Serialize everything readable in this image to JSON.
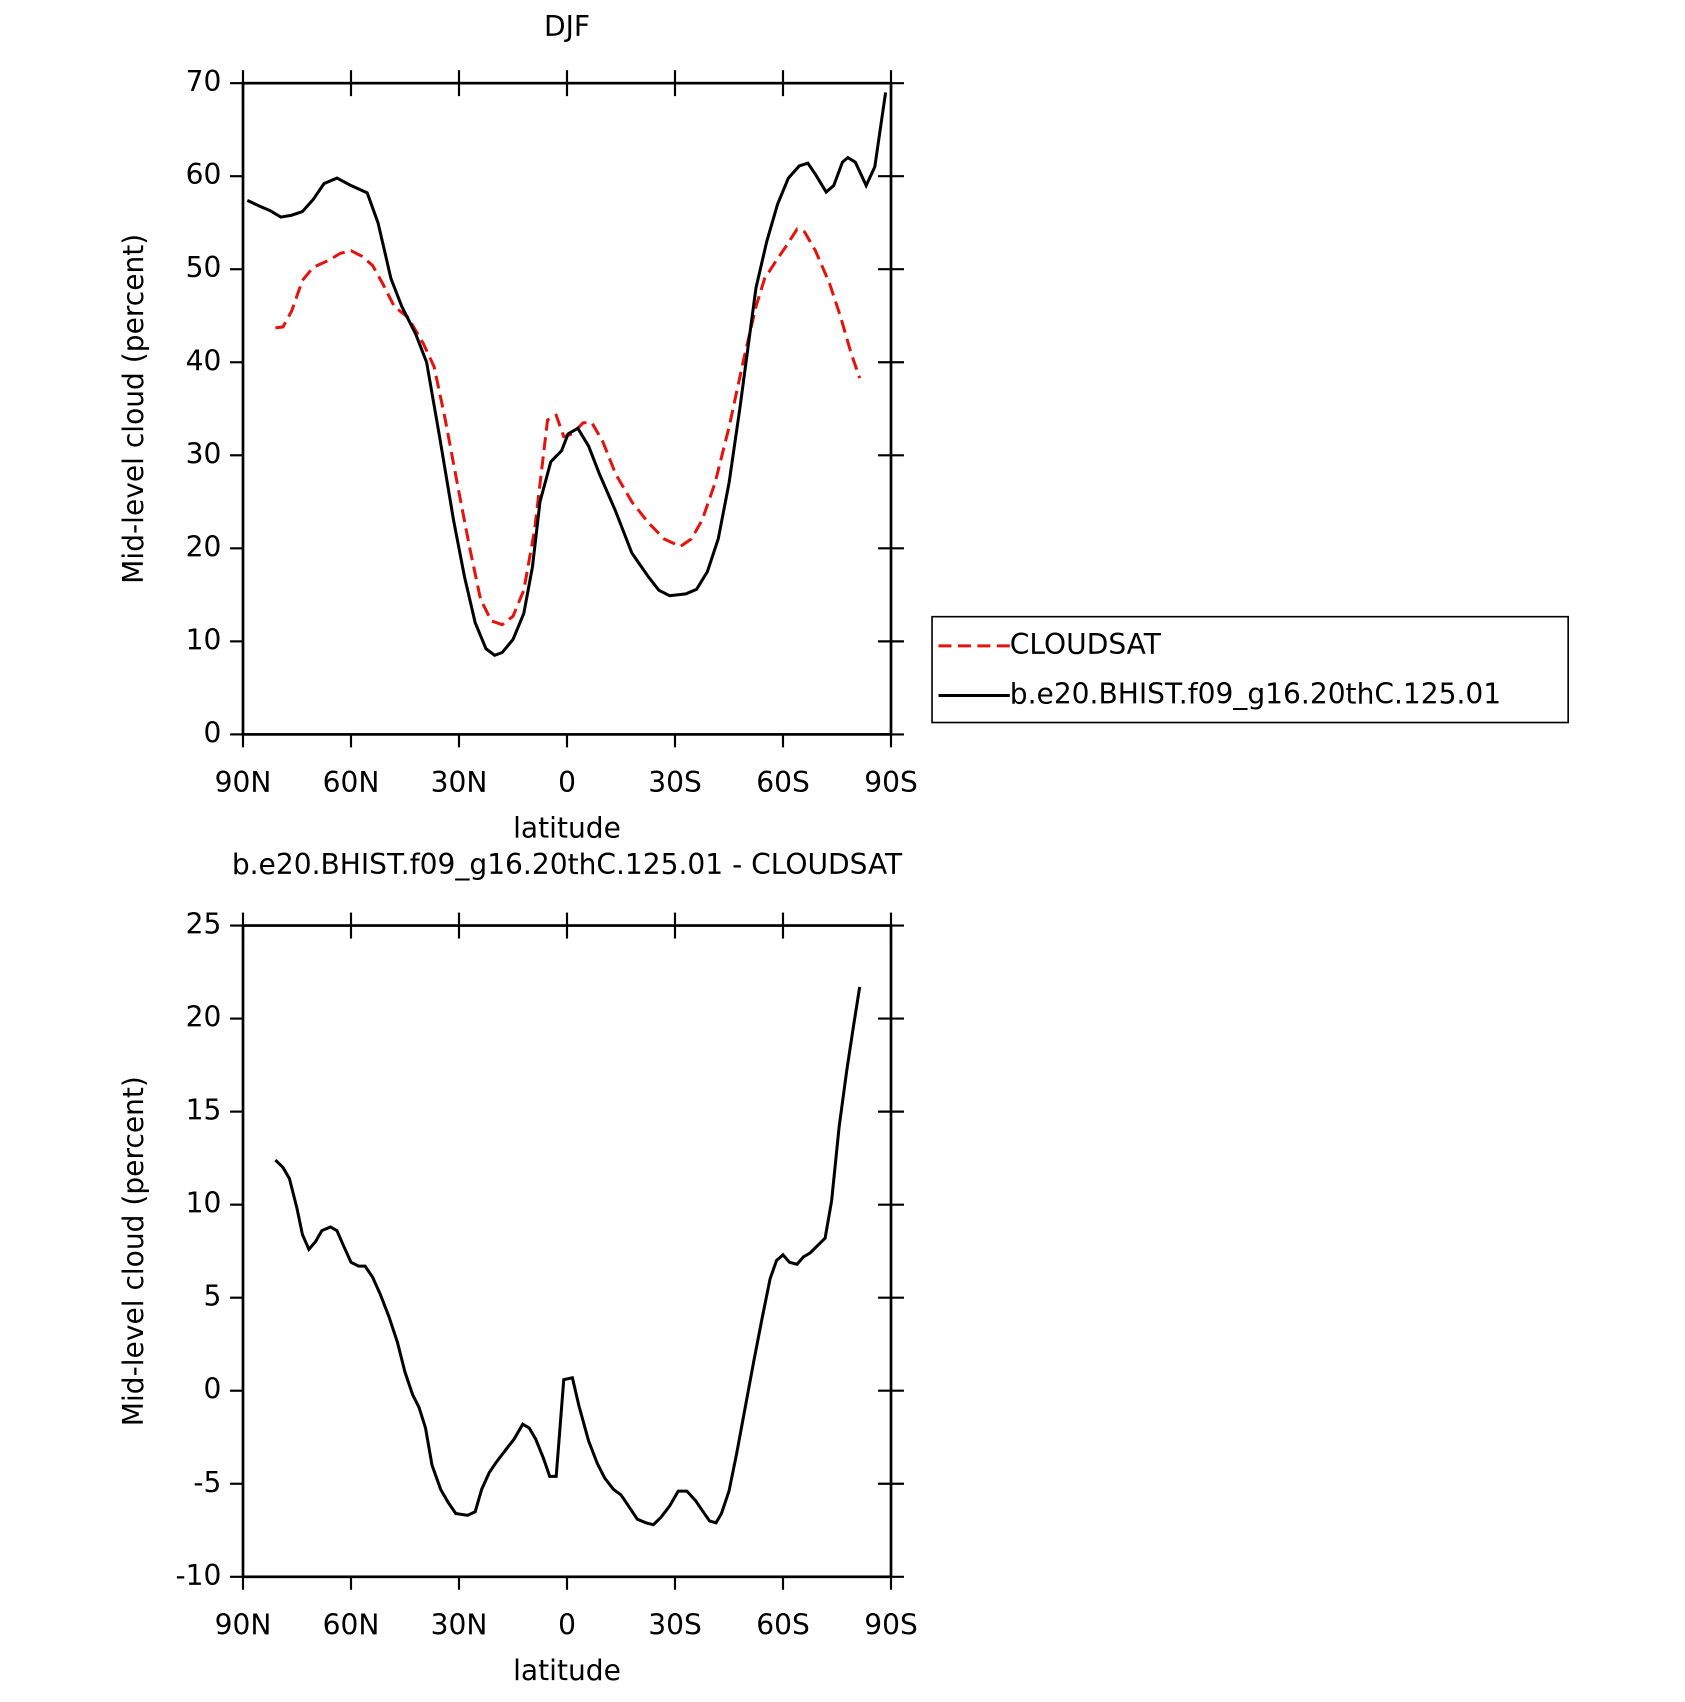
{
  "chart_data": [
    {
      "type": "line",
      "title": "DJF",
      "x_label": "latitude",
      "y_label": "Mid-level cloud (percent)",
      "xlim": [
        90,
        -90
      ],
      "xticks": [
        {
          "value": 90,
          "label": "90N"
        },
        {
          "value": 60,
          "label": "60N"
        },
        {
          "value": 30,
          "label": "30N"
        },
        0,
        {
          "value": -30,
          "label": "30S"
        },
        {
          "value": -60,
          "label": "60S"
        },
        {
          "value": -90,
          "label": "90S"
        }
      ],
      "ylim": [
        0,
        70
      ],
      "yticks": [
        0,
        10,
        20,
        30,
        40,
        50,
        60,
        70
      ],
      "legend": "right",
      "series": [
        {
          "name": "CLOUDSAT",
          "color": "#e8120c",
          "dashed": true,
          "x": [
            81,
            78.9,
            76.5,
            73.5,
            70.5,
            66,
            63,
            60,
            57,
            54,
            51,
            48,
            44.1,
            39.9,
            36.9,
            33.9,
            30,
            27,
            24,
            21,
            18,
            15,
            12,
            9,
            5.4,
            3,
            0.9,
            -1.5,
            -4.5,
            -6.9,
            -9.9,
            -13.5,
            -18,
            -22.5,
            -27,
            -31.5,
            -34.5,
            -37.5,
            -41.1,
            -45,
            -48.9,
            -52.5,
            -54.9,
            -57.9,
            -60.9,
            -63.9,
            -66,
            -69,
            -72.9,
            -75.9,
            -78.9,
            -81.3
          ],
          "values": [
            43.7,
            43.8,
            45.5,
            48.8,
            50.2,
            51,
            51.7,
            52,
            51.4,
            50.4,
            48.3,
            46,
            44.8,
            42,
            39.5,
            34,
            26,
            20,
            14.5,
            12.2,
            11.8,
            12.7,
            15.5,
            22,
            33.8,
            34.3,
            32,
            32.3,
            33.5,
            33.5,
            31.5,
            28,
            25,
            22.8,
            21,
            20.2,
            21,
            23,
            27,
            33,
            40,
            46,
            49,
            50.8,
            52.5,
            54.3,
            54,
            52,
            48.5,
            45,
            41,
            38.3
          ]
        },
        {
          "name": "b.e20.BHIST.f09_g16.20thC.125.01",
          "color": "#000000",
          "dashed": false,
          "x": [
            88.8,
            85.5,
            82.5,
            79.5,
            76.5,
            73.5,
            70.5,
            67.5,
            63.9,
            60,
            55.5,
            52.5,
            48.9,
            45.9,
            42,
            39,
            35.4,
            31.5,
            28.5,
            25.5,
            22.5,
            20.1,
            18,
            15,
            12,
            9.6,
            7.5,
            4.5,
            1.5,
            -0.3,
            -3,
            -6,
            -9,
            -13.5,
            -18,
            -22.5,
            -25.5,
            -28.5,
            -33,
            -36,
            -39,
            -42,
            -45,
            -48,
            -52.5,
            -55.5,
            -58.5,
            -61.5,
            -64.5,
            -66.9,
            -69,
            -72,
            -74.1,
            -76.5,
            -78,
            -80.1,
            -83.1,
            -85.5,
            -88.5
          ],
          "values": [
            57.4,
            56.8,
            56.3,
            55.6,
            55.8,
            56.2,
            57.5,
            59.2,
            59.8,
            59,
            58.2,
            55,
            49,
            46,
            43,
            40,
            32,
            23,
            17,
            12,
            9.2,
            8.5,
            8.8,
            10.2,
            13,
            18,
            25,
            29.3,
            30.5,
            32.3,
            32.9,
            31,
            28,
            24,
            19.5,
            17,
            15.5,
            14.9,
            15.1,
            15.6,
            17.5,
            21,
            27,
            35,
            48,
            53,
            57,
            59.8,
            61.1,
            61.4,
            60.2,
            58.3,
            59,
            61.5,
            62,
            61.5,
            59,
            61,
            69
          ]
        }
      ]
    },
    {
      "type": "line",
      "title": "b.e20.BHIST.f09_g16.20thC.125.01 - CLOUDSAT",
      "x_label": "latitude",
      "y_label": "Mid-level cloud (percent)",
      "xlim": [
        90,
        -90
      ],
      "xticks": [
        {
          "value": 90,
          "label": "90N"
        },
        {
          "value": 60,
          "label": "60N"
        },
        {
          "value": 30,
          "label": "30N"
        },
        0,
        {
          "value": -30,
          "label": "30S"
        },
        {
          "value": -60,
          "label": "60S"
        },
        {
          "value": -90,
          "label": "90S"
        }
      ],
      "ylim": [
        -10,
        25
      ],
      "yticks": [
        -10,
        -5,
        0,
        5,
        10,
        15,
        20,
        25
      ],
      "series": [
        {
          "color": "#000000",
          "dashed": false,
          "x": [
            81,
            78.9,
            77.1,
            75,
            73.5,
            71.7,
            69.9,
            68.1,
            65.7,
            63.9,
            62.1,
            60,
            57.9,
            56.1,
            54,
            51.9,
            49.5,
            47.1,
            45,
            42.9,
            41.1,
            39.3,
            37.5,
            35.1,
            33,
            30.9,
            27.6,
            25.5,
            23.7,
            21.6,
            19.5,
            17.1,
            14.7,
            12.3,
            10.5,
            8.7,
            6.6,
            4.8,
            3,
            0.9,
            -1.5,
            -3.3,
            -6,
            -8.4,
            -10.5,
            -12.9,
            -15,
            -17.1,
            -19.5,
            -21.9,
            -24,
            -26.1,
            -28.5,
            -30.9,
            -33.3,
            -35.7,
            -37.8,
            -39.6,
            -41.4,
            -42.9,
            -45,
            -47.1,
            -49.5,
            -51.9,
            -54.3,
            -56.4,
            -58.2,
            -60,
            -61.8,
            -63.9,
            -65.7,
            -67.5,
            -69.6,
            -71.7,
            -73.5,
            -75.6,
            -77.7,
            -79.5,
            -81.3
          ],
          "values": [
            12.4,
            12,
            11.4,
            9.8,
            8.4,
            7.6,
            8,
            8.6,
            8.8,
            8.6,
            7.8,
            6.9,
            6.7,
            6.7,
            6.1,
            5.2,
            4,
            2.6,
            1,
            -0.2,
            -0.9,
            -2,
            -4,
            -5.3,
            -6,
            -6.6,
            -6.7,
            -6.5,
            -5.3,
            -4.4,
            -3.8,
            -3.2,
            -2.6,
            -1.8,
            -2,
            -2.6,
            -3.6,
            -4.6,
            -4.6,
            0.6,
            0.7,
            -0.8,
            -2.7,
            -3.9,
            -4.7,
            -5.3,
            -5.6,
            -6.2,
            -6.9,
            -7.1,
            -7.2,
            -6.8,
            -6.2,
            -5.4,
            -5.4,
            -5.9,
            -6.5,
            -7,
            -7.1,
            -6.6,
            -5.4,
            -3.4,
            -0.9,
            1.6,
            4,
            6,
            7,
            7.3,
            6.9,
            6.8,
            7.2,
            7.4,
            7.8,
            8.2,
            10.2,
            14.2,
            17.2,
            19.5,
            21.7
          ]
        }
      ]
    }
  ]
}
